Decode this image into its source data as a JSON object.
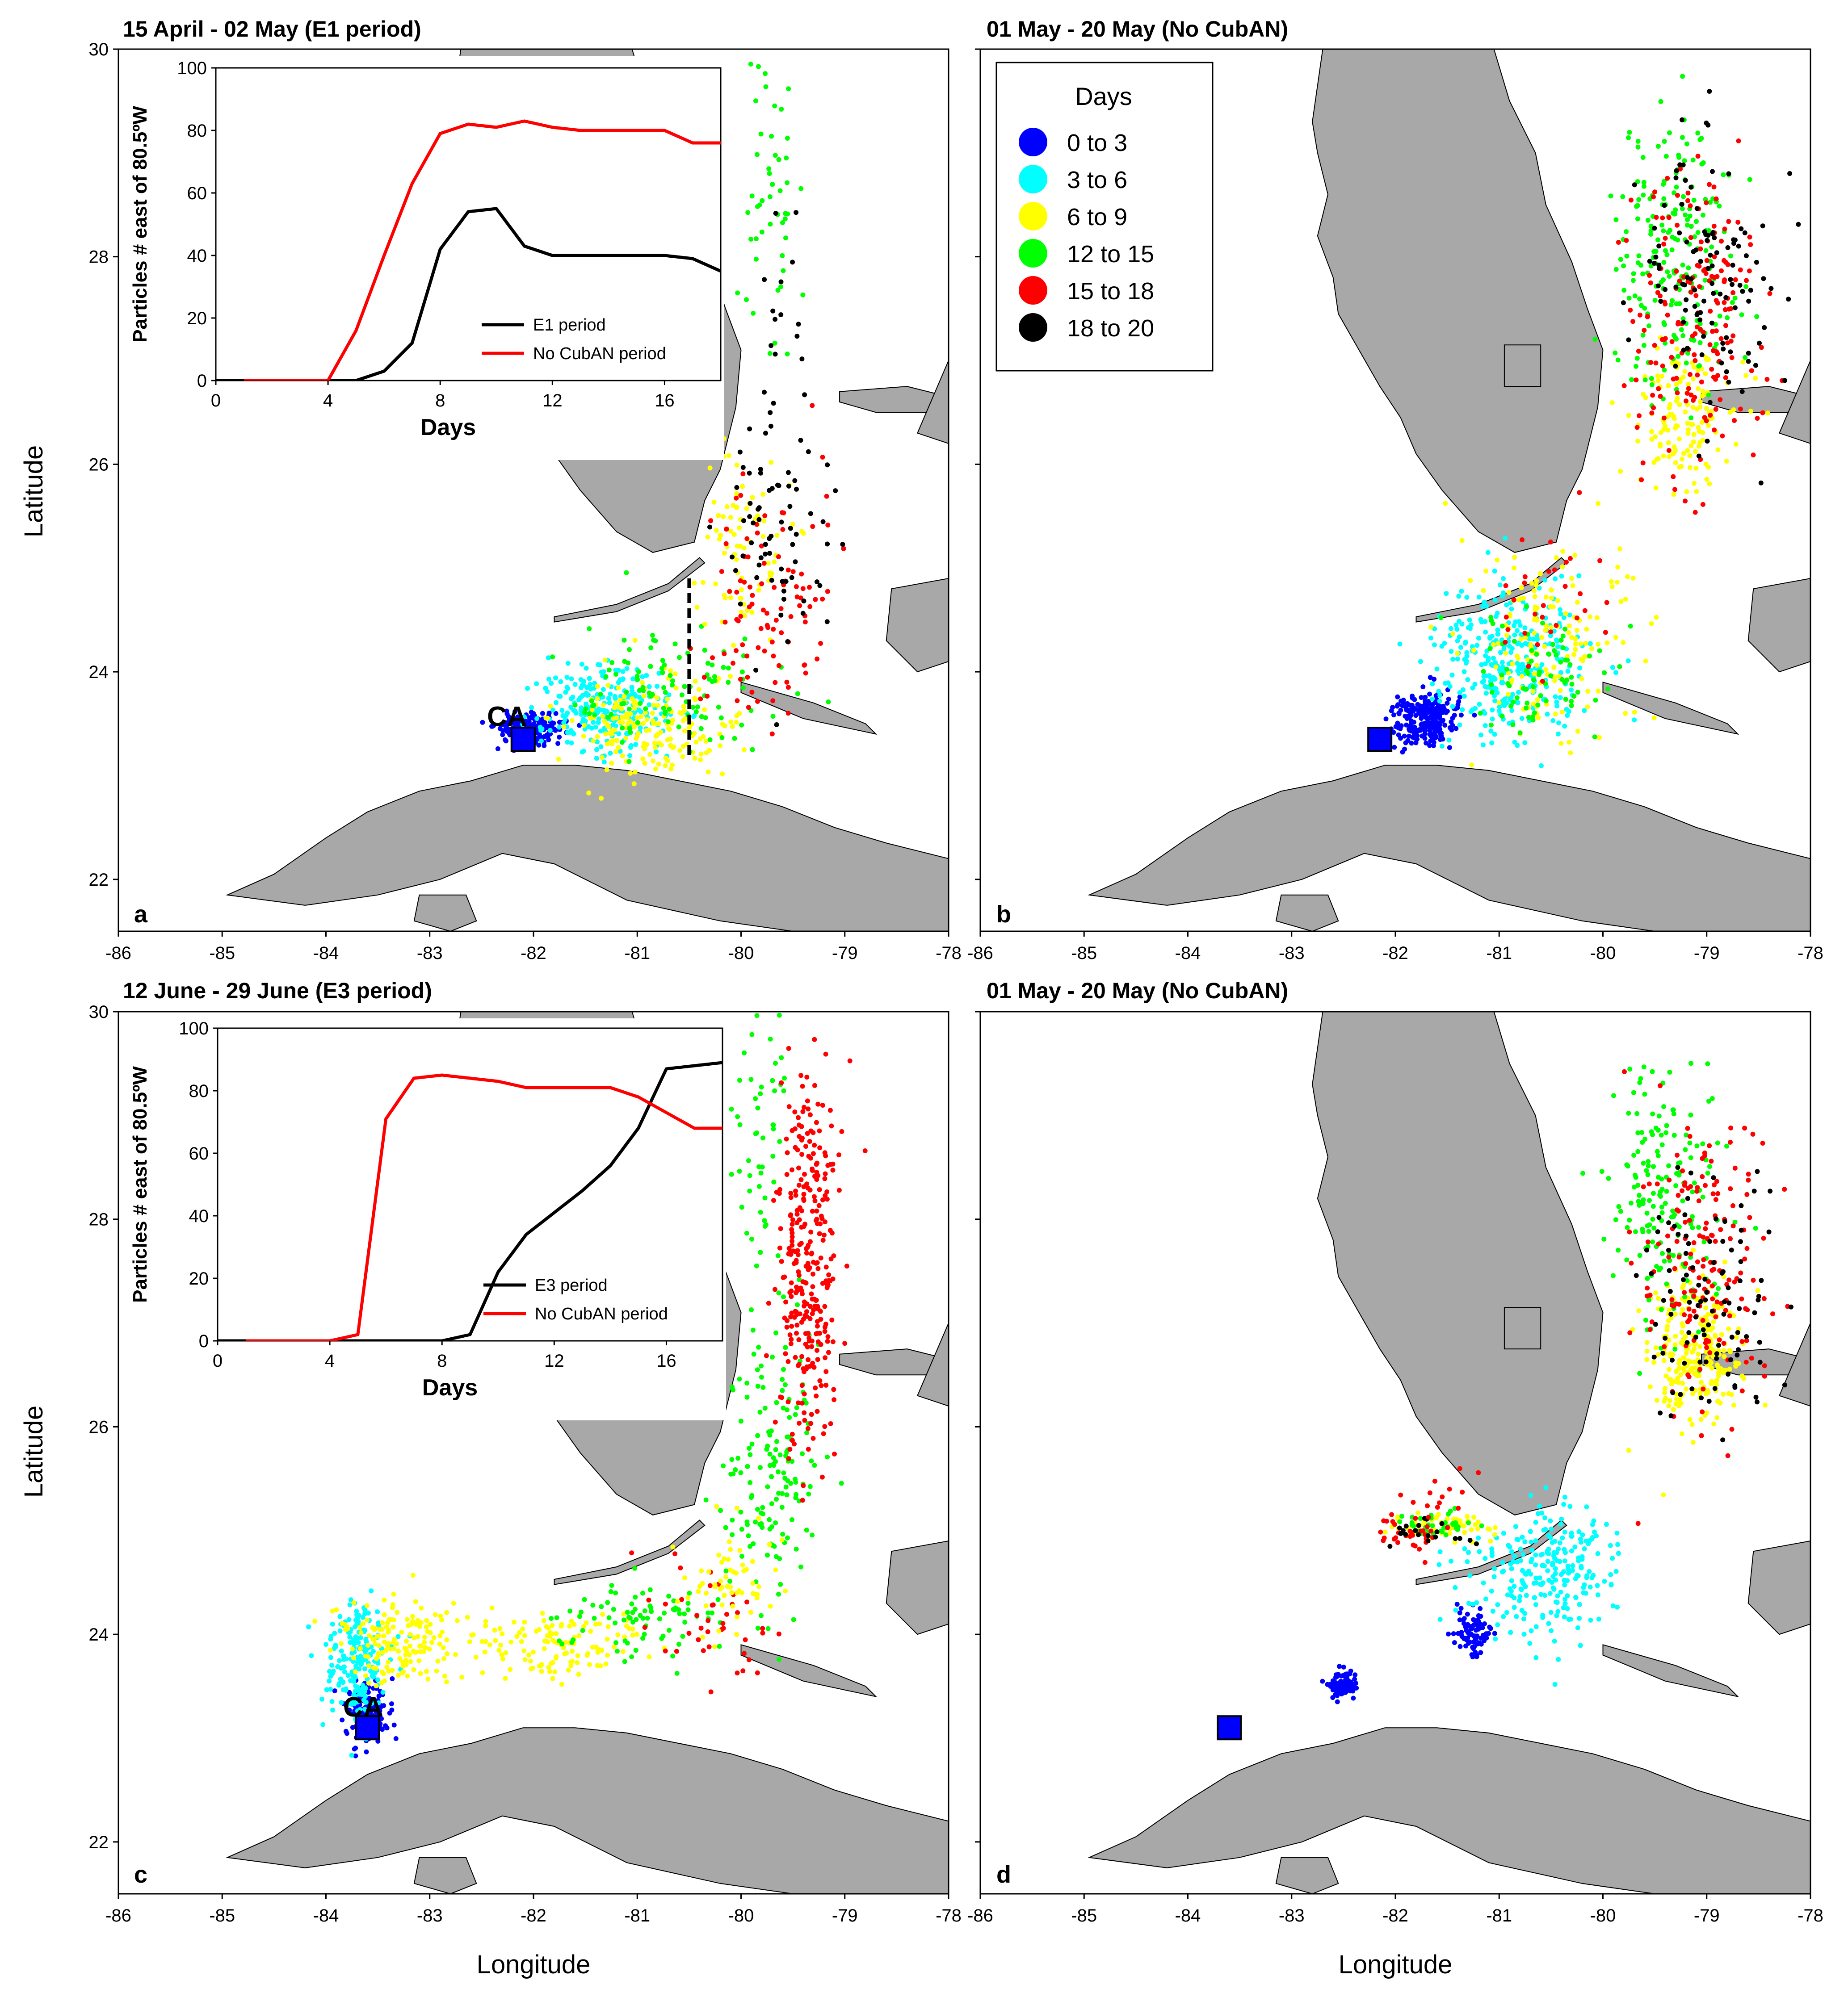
{
  "figure": {
    "ylabel": "Latitude",
    "xlabel": "Longitude",
    "x_ticks": [
      "-86",
      "-85",
      "-84",
      "-83",
      "-82",
      "-81",
      "-80",
      "-79",
      "-78"
    ],
    "y_ticks": [
      "22",
      "24",
      "26",
      "28",
      "30"
    ],
    "x_range": [
      -86,
      -78
    ],
    "y_range": [
      21.5,
      30
    ],
    "colors": {
      "land": "#a8a8a8",
      "c0": "#0000ff",
      "c3": "#00ffff",
      "c6": "#ffff00",
      "c12": "#00ff00",
      "c15": "#ff0000",
      "c18": "#000000",
      "e_line": "#000000",
      "nocuban_line": "#ff0000"
    }
  },
  "legend": {
    "title": "Days",
    "entries": [
      {
        "label": "0  to  3",
        "color": "#0000ff"
      },
      {
        "label": "3  to  6",
        "color": "#00ffff"
      },
      {
        "label": "6  to  9",
        "color": "#ffff00"
      },
      {
        "label": "12  to  15",
        "color": "#00ff00"
      },
      {
        "label": "15  to  18",
        "color": "#ff0000"
      },
      {
        "label": "18  to  20",
        "color": "#000000"
      }
    ]
  },
  "panels": [
    {
      "id": "a",
      "letter": "a",
      "title": "15 April - 02 May (E1 period)",
      "site_label": "CA",
      "site": {
        "lon": -82.1,
        "lat": 23.35
      },
      "meridian": {
        "lon": -80.5,
        "lat_from": 23.2,
        "lat_to": 24.9
      },
      "clouds": [
        {
          "c": "c0",
          "lon": -82.05,
          "lat": 23.45,
          "slon": 0.22,
          "slat": 0.12,
          "n": 200,
          "seed": 11
        },
        {
          "c": "c3",
          "lon": -81.3,
          "lat": 23.65,
          "slon": 0.45,
          "slat": 0.28,
          "n": 260,
          "seed": 12
        },
        {
          "c": "c6",
          "lon": -80.9,
          "lat": 23.5,
          "slon": 0.55,
          "slat": 0.35,
          "n": 190,
          "seed": 13
        },
        {
          "c": "c12",
          "lon": -80.7,
          "lat": 23.8,
          "slon": 0.7,
          "slat": 0.45,
          "n": 110,
          "seed": 14
        },
        {
          "c": "c6",
          "lon": -79.95,
          "lat": 25.3,
          "slon": 0.3,
          "slat": 0.7,
          "n": 80,
          "seed": 15
        },
        {
          "c": "c15",
          "lon": -79.7,
          "lat": 24.7,
          "slon": 0.45,
          "slat": 0.8,
          "n": 100,
          "seed": 16
        },
        {
          "c": "c18",
          "lon": -79.6,
          "lat": 25.4,
          "slon": 0.4,
          "slat": 0.8,
          "n": 70,
          "seed": 17
        },
        {
          "c": "c12",
          "lon": -79.7,
          "lat": 28.6,
          "slon": 0.18,
          "slat": 1.0,
          "n": 50,
          "seed": 18
        },
        {
          "c": "c18",
          "lon": -79.6,
          "lat": 27.5,
          "slon": 0.3,
          "slat": 0.6,
          "n": 15,
          "seed": 19
        }
      ],
      "inset": {
        "ylabel": "Particles # east of 80.5ºW",
        "xlabel": "Days",
        "x_ticks": [
          "0",
          "4",
          "8",
          "12",
          "16"
        ],
        "y_ticks": [
          "0",
          "20",
          "40",
          "60",
          "80",
          "100"
        ],
        "xlim": [
          0,
          18
        ],
        "ylim": [
          0,
          100
        ],
        "series": [
          {
            "name": "E1 period",
            "color": "#000000",
            "x": [
              0,
              1,
              2,
              3,
              4,
              5,
              6,
              7,
              8,
              9,
              10,
              11,
              12,
              13,
              14,
              15,
              16,
              17,
              18
            ],
            "y": [
              0,
              0,
              0,
              0,
              0,
              0,
              3,
              12,
              42,
              54,
              55,
              43,
              40,
              40,
              40,
              40,
              40,
              39,
              35
            ]
          },
          {
            "name": "No CubAN period",
            "color": "#ff0000",
            "x": [
              1,
              2,
              3,
              4,
              5,
              6,
              7,
              8,
              9,
              10,
              11,
              12,
              13,
              14,
              15,
              16,
              17,
              18
            ],
            "y": [
              0,
              0,
              0,
              0,
              16,
              40,
              63,
              79,
              82,
              81,
              83,
              81,
              80,
              80,
              80,
              80,
              76,
              76
            ]
          }
        ]
      }
    },
    {
      "id": "b",
      "letter": "b",
      "title": "01 May - 20 May (No CubAN)",
      "site": {
        "lon": -82.15,
        "lat": 23.35
      },
      "clouds": [
        {
          "c": "c0",
          "lon": -81.7,
          "lat": 23.55,
          "slon": 0.22,
          "slat": 0.18,
          "n": 240,
          "seed": 21
        },
        {
          "c": "c3",
          "lon": -80.9,
          "lat": 24.1,
          "slon": 0.55,
          "slat": 0.5,
          "n": 330,
          "seed": 22
        },
        {
          "c": "c6",
          "lon": -80.5,
          "lat": 24.3,
          "slon": 0.55,
          "slat": 0.7,
          "n": 160,
          "seed": 23
        },
        {
          "c": "c12",
          "lon": -80.6,
          "lat": 24.0,
          "slon": 0.5,
          "slat": 0.4,
          "n": 80,
          "seed": 24
        },
        {
          "c": "c6",
          "lon": -79.2,
          "lat": 26.5,
          "slon": 0.35,
          "slat": 0.5,
          "n": 140,
          "seed": 25
        },
        {
          "c": "c12",
          "lon": -79.3,
          "lat": 28.0,
          "slon": 0.45,
          "slat": 1.0,
          "n": 220,
          "seed": 26
        },
        {
          "c": "c15",
          "lon": -79.1,
          "lat": 27.4,
          "slon": 0.45,
          "slat": 1.0,
          "n": 180,
          "seed": 27
        },
        {
          "c": "c18",
          "lon": -79.0,
          "lat": 27.9,
          "slon": 0.5,
          "slat": 1.0,
          "n": 110,
          "seed": 28
        },
        {
          "c": "c15",
          "lon": -80.5,
          "lat": 24.7,
          "slon": 0.4,
          "slat": 0.5,
          "n": 30,
          "seed": 29
        }
      ]
    },
    {
      "id": "c",
      "letter": "c",
      "title": "12 June - 29 June (E3 period)",
      "site_label": "CA",
      "site": {
        "lon": -83.6,
        "lat": 23.1
      },
      "clouds": [
        {
          "c": "c0",
          "lon": -83.6,
          "lat": 23.25,
          "slon": 0.15,
          "slat": 0.2,
          "n": 160,
          "seed": 31
        },
        {
          "c": "c3",
          "lon": -83.7,
          "lat": 23.7,
          "slon": 0.25,
          "slat": 0.4,
          "n": 200,
          "seed": 32
        },
        {
          "c": "c6",
          "lon": -83.3,
          "lat": 23.95,
          "slon": 0.45,
          "slat": 0.3,
          "n": 160,
          "seed": 33
        },
        {
          "c": "c6",
          "lon": -81.8,
          "lat": 23.9,
          "slon": 0.6,
          "slat": 0.25,
          "n": 130,
          "seed": 34
        },
        {
          "c": "c12",
          "lon": -81.0,
          "lat": 24.15,
          "slon": 0.55,
          "slat": 0.3,
          "n": 80,
          "seed": 35
        },
        {
          "c": "c12",
          "lon": -79.7,
          "lat": 25.6,
          "slon": 0.3,
          "slat": 1.0,
          "n": 160,
          "seed": 36
        },
        {
          "c": "c12",
          "lon": -79.8,
          "lat": 28.8,
          "slon": 0.2,
          "slat": 0.9,
          "n": 50,
          "seed": 37
        },
        {
          "c": "c15",
          "lon": -79.35,
          "lat": 27.6,
          "slon": 0.2,
          "slat": 1.3,
          "n": 320,
          "seed": 38
        },
        {
          "c": "c15",
          "lon": -80.3,
          "lat": 24.2,
          "slon": 0.5,
          "slat": 0.4,
          "n": 40,
          "seed": 39
        },
        {
          "c": "c6",
          "lon": -80.1,
          "lat": 24.5,
          "slon": 0.35,
          "slat": 0.35,
          "n": 60,
          "seed": 40
        }
      ],
      "inset": {
        "ylabel": "Particles # east of 80.5ºW",
        "xlabel": "Days",
        "x_ticks": [
          "0",
          "4",
          "8",
          "12",
          "16"
        ],
        "y_ticks": [
          "0",
          "20",
          "40",
          "60",
          "80",
          "100"
        ],
        "xlim": [
          0,
          18
        ],
        "ylim": [
          0,
          100
        ],
        "series": [
          {
            "name": "E3 period",
            "color": "#000000",
            "x": [
              0,
              1,
              2,
              3,
              4,
              5,
              6,
              7,
              8,
              9,
              10,
              11,
              12,
              13,
              14,
              15,
              16,
              17,
              18
            ],
            "y": [
              0,
              0,
              0,
              0,
              0,
              0,
              0,
              0,
              0,
              2,
              22,
              34,
              41,
              48,
              56,
              68,
              87,
              88,
              89
            ]
          },
          {
            "name": "No CubAN period",
            "color": "#ff0000",
            "x": [
              1,
              2,
              3,
              4,
              5,
              6,
              7,
              8,
              9,
              10,
              11,
              12,
              13,
              14,
              15,
              16,
              17,
              18
            ],
            "y": [
              0,
              0,
              0,
              0,
              2,
              71,
              84,
              85,
              84,
              83,
              81,
              81,
              81,
              81,
              78,
              73,
              68,
              68
            ]
          }
        ]
      }
    },
    {
      "id": "d",
      "letter": "d",
      "title": "01 May - 20 May (No CubAN)",
      "site": {
        "lon": -83.6,
        "lat": 23.1
      },
      "clouds": [
        {
          "c": "c0",
          "lon": -82.5,
          "lat": 23.5,
          "slon": 0.1,
          "slat": 0.1,
          "n": 90,
          "seed": 41
        },
        {
          "c": "c0",
          "lon": -81.25,
          "lat": 24.0,
          "slon": 0.12,
          "slat": 0.15,
          "n": 90,
          "seed": 42
        },
        {
          "c": "c3",
          "lon": -80.55,
          "lat": 24.6,
          "slon": 0.5,
          "slat": 0.45,
          "n": 260,
          "seed": 43
        },
        {
          "c": "c6",
          "lon": -81.5,
          "lat": 25.05,
          "slon": 0.4,
          "slat": 0.08,
          "n": 70,
          "seed": 44
        },
        {
          "c": "c12",
          "lon": -81.6,
          "lat": 25.05,
          "slon": 0.3,
          "slat": 0.1,
          "n": 40,
          "seed": 45
        },
        {
          "c": "c15",
          "lon": -81.9,
          "lat": 25.0,
          "slon": 0.25,
          "slat": 0.15,
          "n": 30,
          "seed": 46
        },
        {
          "c": "c18",
          "lon": -81.7,
          "lat": 25.0,
          "slon": 0.3,
          "slat": 0.1,
          "n": 20,
          "seed": 47
        },
        {
          "c": "c6",
          "lon": -79.1,
          "lat": 26.7,
          "slon": 0.35,
          "slat": 0.5,
          "n": 260,
          "seed": 48
        },
        {
          "c": "c12",
          "lon": -79.4,
          "lat": 28.2,
          "slon": 0.4,
          "slat": 0.9,
          "n": 180,
          "seed": 49
        },
        {
          "c": "c15",
          "lon": -79.0,
          "lat": 27.6,
          "slon": 0.45,
          "slat": 1.0,
          "n": 170,
          "seed": 50
        },
        {
          "c": "c18",
          "lon": -79.0,
          "lat": 27.3,
          "slon": 0.45,
          "slat": 0.8,
          "n": 100,
          "seed": 51
        },
        {
          "c": "c15",
          "lon": -81.8,
          "lat": 25.3,
          "slon": 0.5,
          "slat": 0.25,
          "n": 15,
          "seed": 52
        }
      ]
    }
  ]
}
